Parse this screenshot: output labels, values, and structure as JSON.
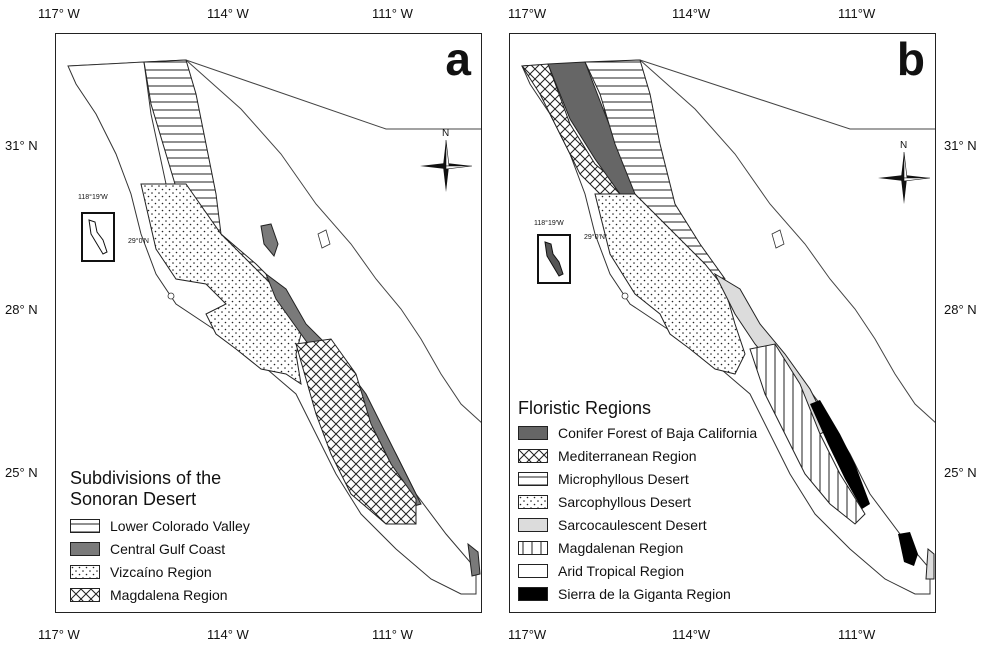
{
  "axes": {
    "lon_labels": [
      "117° W",
      "114° W",
      "111° W"
    ],
    "lat_labels": [
      "31° N",
      "28° N",
      "25° N"
    ],
    "lon_labels_b": [
      "117°W",
      "114°W",
      "111°W"
    ]
  },
  "panel_a": {
    "letter": "a",
    "legend": {
      "title": [
        "Subdivisions of the",
        "Sonoran Desert"
      ],
      "items": [
        {
          "label": "Lower Colorado Valley",
          "pattern": "hlines"
        },
        {
          "label": "Central Gulf Coast",
          "pattern": "gray"
        },
        {
          "label": "Vizcaíno Region",
          "pattern": "dots"
        },
        {
          "label": "Magdalena Region",
          "pattern": "crosshatch"
        }
      ]
    },
    "inset": {
      "lon": "118°19'W",
      "lat": "29°0'N"
    }
  },
  "panel_b": {
    "letter": "b",
    "legend": {
      "title": "Floristic Regions",
      "items": [
        {
          "label": "Conifer Forest of Baja California",
          "pattern": "darkgray"
        },
        {
          "label": "Mediterranean Region",
          "pattern": "crosshatch"
        },
        {
          "label": "Microphyllous Desert",
          "pattern": "hlines"
        },
        {
          "label": "Sarcophyllous Desert",
          "pattern": "dots"
        },
        {
          "label": "Sarcocaulescent Desert",
          "pattern": "lightgray"
        },
        {
          "label": "Magdalenan Region",
          "pattern": "vlines"
        },
        {
          "label": "Arid Tropical Region",
          "pattern": "white"
        },
        {
          "label": "Sierra de la Giganta Region",
          "pattern": "black"
        }
      ]
    },
    "inset": {
      "lon": "118°19'W",
      "lat": "29°0'N"
    }
  },
  "compass_label": "N",
  "colors": {
    "gray": "#7a7a7a",
    "darkgray": "#666666",
    "lightgray": "#dcdcdc",
    "black": "#000000"
  }
}
